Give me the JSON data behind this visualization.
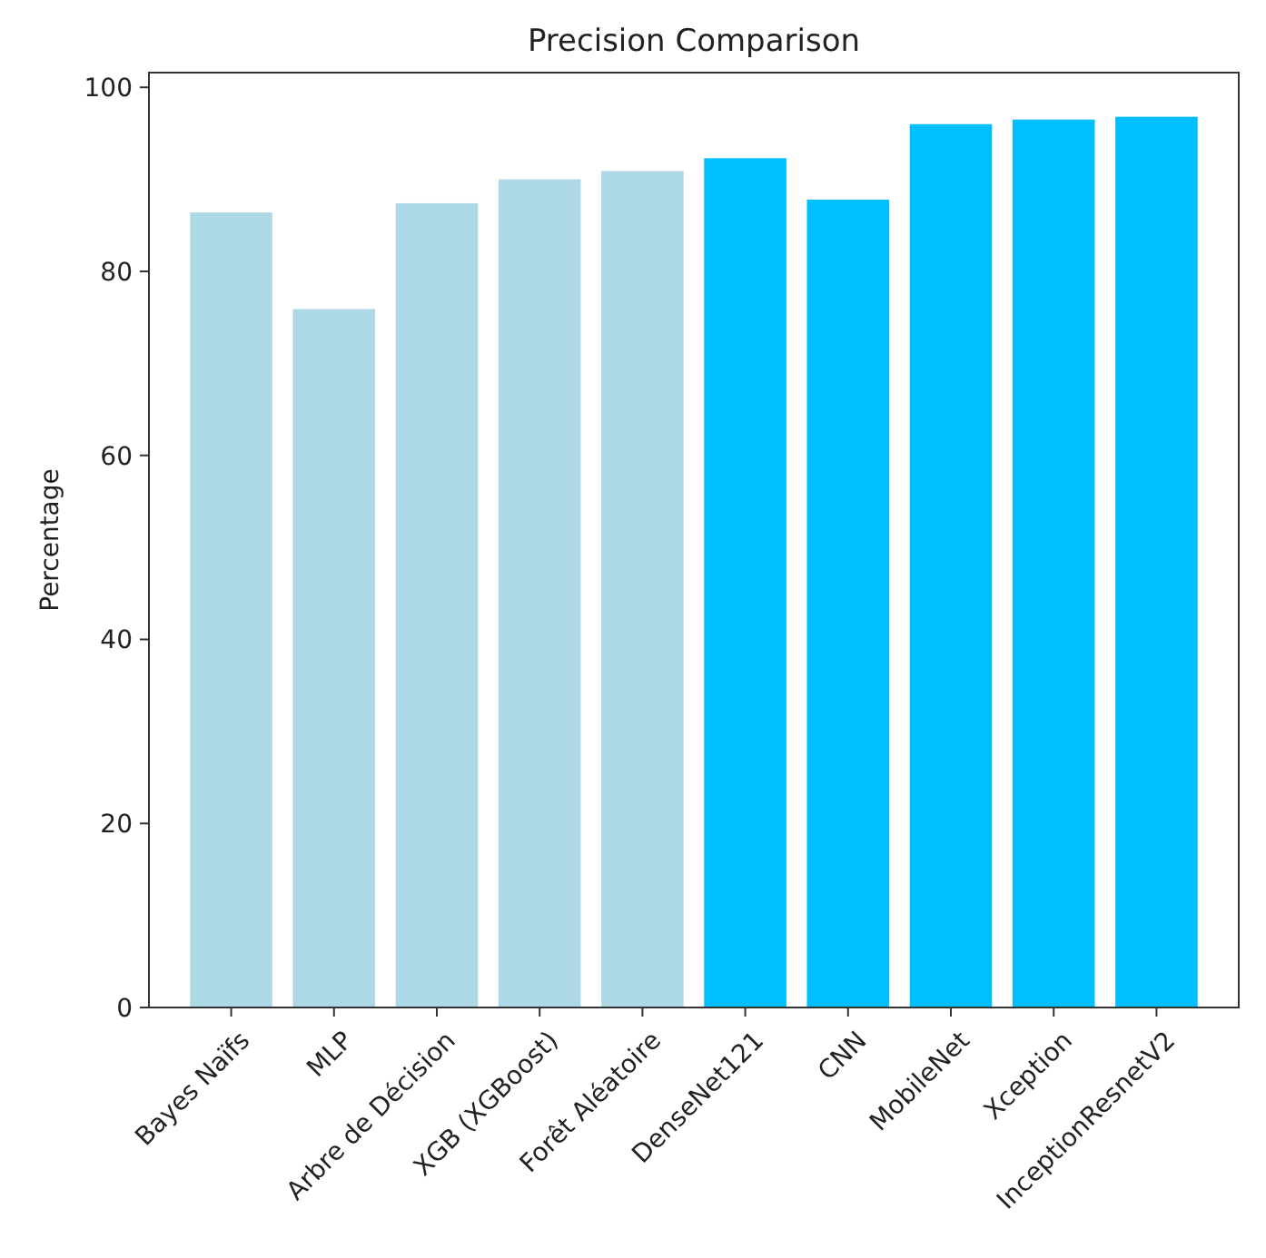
{
  "chart_data": {
    "type": "bar",
    "title": "Precision Comparison",
    "ylabel": "Percentage",
    "categories": [
      "Bayes Naïfs",
      "MLP",
      "Arbre de Décision",
      "XGB (XGBoost)",
      "Forêt Aléatoire",
      "DenseNet121",
      "CNN",
      "MobileNet",
      "Xception",
      "InceptionResnetV2"
    ],
    "values": [
      86.4,
      75.9,
      87.4,
      90.0,
      90.9,
      92.3,
      87.8,
      96.0,
      96.5,
      96.8
    ],
    "colors": [
      "#add8e6",
      "#add8e6",
      "#add8e6",
      "#add8e6",
      "#add8e6",
      "#00bfff",
      "#00bfff",
      "#00bfff",
      "#00bfff",
      "#00bfff"
    ],
    "ylim": [
      0,
      101.6
    ],
    "yticks": [
      0,
      20,
      40,
      60,
      80,
      100
    ]
  }
}
